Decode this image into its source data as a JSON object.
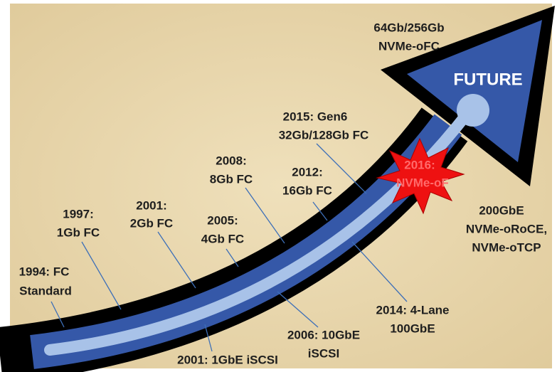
{
  "future": "FUTURE",
  "milestones": [
    {
      "lines": [
        "64Gb/256Gb",
        "NVMe-oFC"
      ]
    },
    {
      "lines": [
        "2015: Gen6",
        "32Gb/128Gb FC"
      ]
    },
    {
      "lines": [
        "2016:",
        "NVMe-oF"
      ]
    },
    {
      "lines": [
        "2008:",
        "8Gb FC"
      ]
    },
    {
      "lines": [
        "2012:",
        "16Gb FC"
      ]
    },
    {
      "lines": [
        "2001:",
        "2Gb FC"
      ]
    },
    {
      "lines": [
        "1997:",
        "1Gb FC"
      ]
    },
    {
      "lines": [
        "2005:",
        "4Gb FC"
      ]
    },
    {
      "lines": [
        "1994: FC",
        "Standard"
      ]
    },
    {
      "lines": [
        "200GbE",
        "NVMe-oRoCE,",
        "NVMe-oTCP"
      ]
    },
    {
      "lines": [
        "2014: 4-Lane",
        "100GbE"
      ]
    },
    {
      "lines": [
        "2006: 10GbE",
        "iSCSI"
      ]
    },
    {
      "lines": [
        "2001: 1GbE iSCSI"
      ]
    }
  ]
}
